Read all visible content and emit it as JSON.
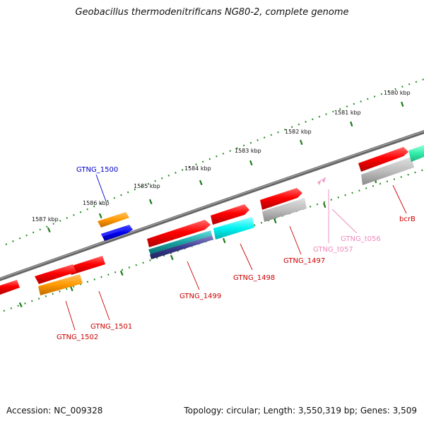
{
  "title": "Geobacillus thermodenitrificans NG80-2, complete genome",
  "footer": {
    "accession": "Accession: NC_009328",
    "topology": "Topology: circular; Length: 3,550,319 bp; Genes: 3,509"
  },
  "ruler": {
    "ticks": [
      "1580 kbp",
      "1581 kbp",
      "1582 kbp",
      "1583 kbp",
      "1584 kbp",
      "1585 kbp",
      "1586 kbp",
      "1587 kbp"
    ]
  },
  "genes": [
    {
      "name": "GTNG_1500",
      "color": "#0000cc"
    },
    {
      "name": "GTNG_1499",
      "color": "#cc0000"
    },
    {
      "name": "GTNG_1498",
      "color": "#cc0000"
    },
    {
      "name": "GTNG_1497",
      "color": "#cc0000"
    },
    {
      "name": "GTNG_t057",
      "color": "#ee88bb"
    },
    {
      "name": "GTNG_t056",
      "color": "#ee88bb"
    },
    {
      "name": "bcrB",
      "color": "#cc0000"
    },
    {
      "name": "GTNG_1501",
      "color": "#cc0000"
    },
    {
      "name": "GTNG_1502",
      "color": "#cc0000"
    }
  ]
}
